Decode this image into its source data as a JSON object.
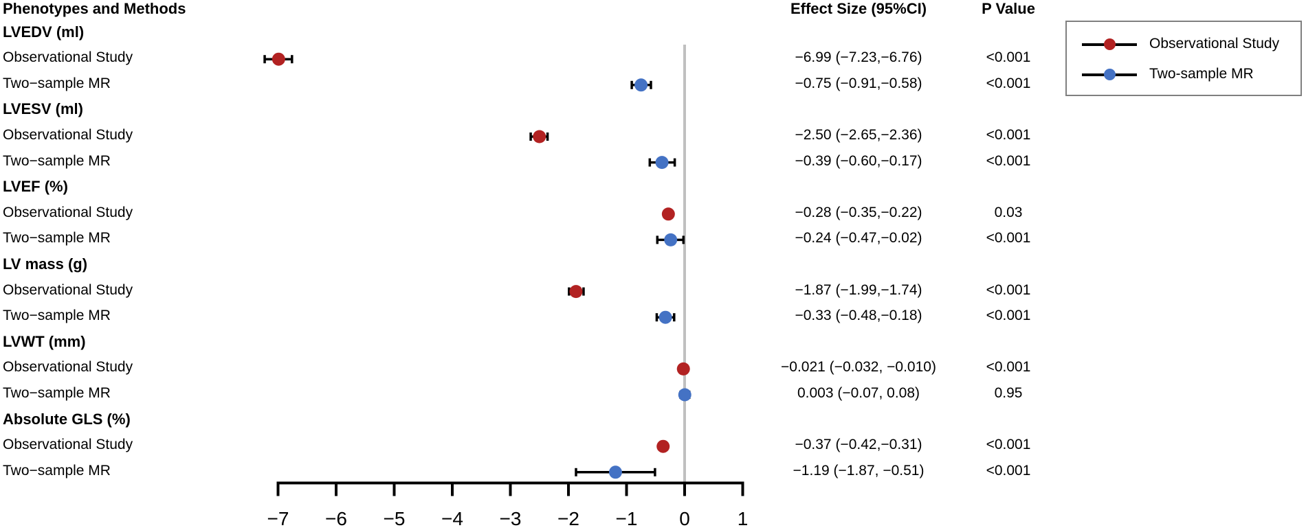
{
  "figure": {
    "columns": {
      "phenotypes": "Phenotypes and Methods",
      "effect": "Effect Size (95%CI)",
      "pvalue": "P Value"
    },
    "legend": {
      "items": [
        {
          "name": "observational",
          "label": "Observational Study",
          "color": "#B22222"
        },
        {
          "name": "mr",
          "label": "Two-sample MR",
          "color": "#4472C4"
        }
      ]
    }
  },
  "colors": {
    "observational": "#B22222",
    "mr": "#4472C4",
    "zero_line": "#C0C0C0",
    "axis": "#000000",
    "error_bar": "#000000"
  },
  "chart_data": {
    "type": "scatter",
    "subtype": "forest-plot",
    "title": "",
    "xlabel": "",
    "ylabel": "",
    "xlim": [
      -7,
      1
    ],
    "x_ticks": [
      -7,
      -6,
      -5,
      -4,
      -3,
      -2,
      -1,
      0,
      1
    ],
    "x_tick_labels": [
      "−7",
      "−6",
      "−5",
      "−4",
      "−3",
      "−2",
      "−1",
      "0",
      "1"
    ],
    "reference_line_x": 0,
    "grid": false,
    "legend_position": "top-right",
    "series_names": [
      "Observational Study",
      "Two-sample MR"
    ],
    "groups": [
      {
        "label": "LVEDV (ml)",
        "rows": [
          {
            "method": "Observational Study",
            "series": "observational",
            "estimate": -6.99,
            "ci_low": -7.23,
            "ci_high": -6.76,
            "effect_text": "−6.99 (−7.23,−6.76)",
            "p_text": "<0.001"
          },
          {
            "method": "Two−sample MR",
            "series": "mr",
            "estimate": -0.75,
            "ci_low": -0.91,
            "ci_high": -0.58,
            "effect_text": "−0.75 (−0.91,−0.58)",
            "p_text": "<0.001"
          }
        ]
      },
      {
        "label": "LVESV (ml)",
        "rows": [
          {
            "method": "Observational Study",
            "series": "observational",
            "estimate": -2.5,
            "ci_low": -2.65,
            "ci_high": -2.36,
            "effect_text": "−2.50 (−2.65,−2.36)",
            "p_text": "<0.001"
          },
          {
            "method": "Two−sample MR",
            "series": "mr",
            "estimate": -0.39,
            "ci_low": -0.6,
            "ci_high": -0.17,
            "effect_text": "−0.39 (−0.60,−0.17)",
            "p_text": "<0.001"
          }
        ]
      },
      {
        "label": "LVEF (%)",
        "rows": [
          {
            "method": "Observational Study",
            "series": "observational",
            "estimate": -0.28,
            "ci_low": -0.35,
            "ci_high": -0.22,
            "effect_text": "−0.28 (−0.35,−0.22)",
            "p_text": "0.03"
          },
          {
            "method": "Two−sample MR",
            "series": "mr",
            "estimate": -0.24,
            "ci_low": -0.47,
            "ci_high": -0.02,
            "effect_text": "−0.24 (−0.47,−0.02)",
            "p_text": "<0.001"
          }
        ]
      },
      {
        "label": "LV mass (g)",
        "rows": [
          {
            "method": "Observational Study",
            "series": "observational",
            "estimate": -1.87,
            "ci_low": -1.99,
            "ci_high": -1.74,
            "effect_text": "−1.87 (−1.99,−1.74)",
            "p_text": "<0.001"
          },
          {
            "method": "Two−sample MR",
            "series": "mr",
            "estimate": -0.33,
            "ci_low": -0.48,
            "ci_high": -0.18,
            "effect_text": "−0.33 (−0.48,−0.18)",
            "p_text": "<0.001"
          }
        ]
      },
      {
        "label": "LVWT (mm)",
        "rows": [
          {
            "method": "Observational Study",
            "series": "observational",
            "estimate": -0.021,
            "ci_low": -0.032,
            "ci_high": -0.01,
            "effect_text": "−0.021 (−0.032, −0.010)",
            "p_text": "<0.001"
          },
          {
            "method": "Two−sample MR",
            "series": "mr",
            "estimate": 0.003,
            "ci_low": -0.07,
            "ci_high": 0.08,
            "effect_text": "0.003 (−0.07, 0.08)",
            "p_text": "0.95"
          }
        ]
      },
      {
        "label": "Absolute GLS (%)",
        "rows": [
          {
            "method": "Observational Study",
            "series": "observational",
            "estimate": -0.37,
            "ci_low": -0.42,
            "ci_high": -0.31,
            "effect_text": "−0.37 (−0.42,−0.31)",
            "p_text": "<0.001"
          },
          {
            "method": "Two−sample MR",
            "series": "mr",
            "estimate": -1.19,
            "ci_low": -1.87,
            "ci_high": -0.51,
            "effect_text": "−1.19 (−1.87, −0.51)",
            "p_text": "<0.001"
          }
        ]
      }
    ]
  }
}
